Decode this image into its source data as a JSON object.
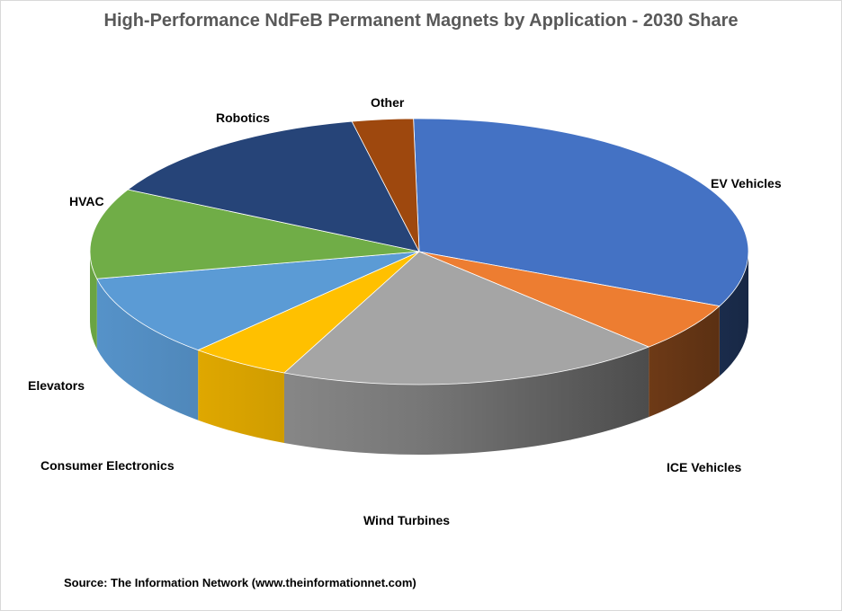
{
  "chart_data": {
    "type": "pie",
    "style": "3d-pie",
    "title": "High-Performance NdFeB Permanent Magnets by Application - 2030 Share",
    "slices": [
      {
        "label": "EV Vehicles",
        "value": 32.0,
        "color": "#4472C4"
      },
      {
        "label": "ICE Vehicles",
        "value": 6.0,
        "color": "#ED7D31"
      },
      {
        "label": "Wind Turbines",
        "value": 19.0,
        "color": "#A5A5A5"
      },
      {
        "label": "Consumer Electronics",
        "value": 5.0,
        "color": "#FFC000"
      },
      {
        "label": "Elevators",
        "value": 10.0,
        "color": "#5B9BD5"
      },
      {
        "label": "HVAC",
        "value": 11.0,
        "color": "#70AD47"
      },
      {
        "label": "Robotics",
        "value": 14.0,
        "color": "#264478"
      },
      {
        "label": "Other",
        "value": 3.0,
        "color": "#9E480E"
      }
    ],
    "legend": "none",
    "data_labels": "category name"
  },
  "source": "Source: The Information Network (www.theinformationnet.com)"
}
